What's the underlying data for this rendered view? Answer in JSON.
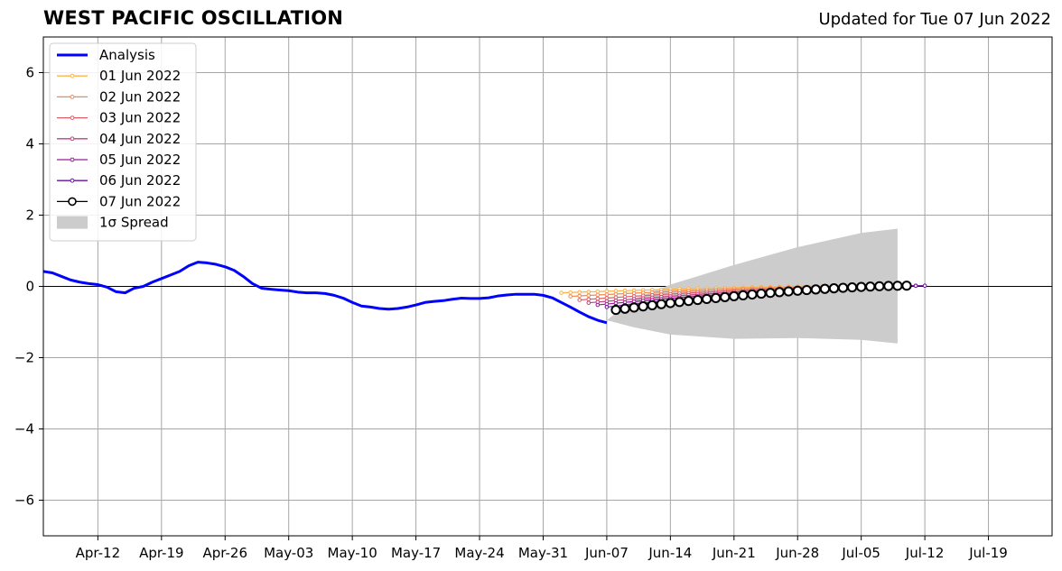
{
  "title": "WEST PACIFIC OSCILLATION",
  "subtitle": "Updated for Tue 07 Jun 2022",
  "chart_data": {
    "type": "line",
    "xlim": [
      "2022-04-06",
      "2022-07-26"
    ],
    "ylim": [
      -7,
      7
    ],
    "grid": true,
    "legend_position": "upper-left",
    "x_ticks": [
      "2022-04-12",
      "2022-04-19",
      "2022-04-26",
      "2022-05-03",
      "2022-05-10",
      "2022-05-17",
      "2022-05-24",
      "2022-05-31",
      "2022-06-07",
      "2022-06-14",
      "2022-06-21",
      "2022-06-28",
      "2022-07-05",
      "2022-07-12",
      "2022-07-19"
    ],
    "x_tick_labels": [
      "Apr-12",
      "Apr-19",
      "Apr-26",
      "May-03",
      "May-10",
      "May-17",
      "May-24",
      "May-31",
      "Jun-07",
      "Jun-14",
      "Jun-21",
      "Jun-28",
      "Jul-05",
      "Jul-12",
      "Jul-19"
    ],
    "y_ticks": [
      -6,
      -4,
      -2,
      0,
      2,
      4,
      6
    ],
    "y_tick_labels": [
      "−6",
      "−4",
      "−2",
      "0",
      "2",
      "4",
      "6"
    ],
    "analysis": {
      "name": "Analysis",
      "color": "#0000ff",
      "points": [
        [
          "2022-04-06",
          0.42
        ],
        [
          "2022-04-07",
          0.38
        ],
        [
          "2022-04-08",
          0.28
        ],
        [
          "2022-04-09",
          0.18
        ],
        [
          "2022-04-10",
          0.12
        ],
        [
          "2022-04-11",
          0.08
        ],
        [
          "2022-04-12",
          0.05
        ],
        [
          "2022-04-13",
          -0.02
        ],
        [
          "2022-04-14",
          -0.15
        ],
        [
          "2022-04-15",
          -0.18
        ],
        [
          "2022-04-16",
          -0.05
        ],
        [
          "2022-04-17",
          0.0
        ],
        [
          "2022-04-18",
          0.12
        ],
        [
          "2022-04-19",
          0.22
        ],
        [
          "2022-04-20",
          0.32
        ],
        [
          "2022-04-21",
          0.42
        ],
        [
          "2022-04-22",
          0.58
        ],
        [
          "2022-04-23",
          0.68
        ],
        [
          "2022-04-24",
          0.66
        ],
        [
          "2022-04-25",
          0.62
        ],
        [
          "2022-04-26",
          0.55
        ],
        [
          "2022-04-27",
          0.45
        ],
        [
          "2022-04-28",
          0.28
        ],
        [
          "2022-04-29",
          0.08
        ],
        [
          "2022-04-30",
          -0.05
        ],
        [
          "2022-05-01",
          -0.08
        ],
        [
          "2022-05-02",
          -0.1
        ],
        [
          "2022-05-03",
          -0.12
        ],
        [
          "2022-05-04",
          -0.16
        ],
        [
          "2022-05-05",
          -0.18
        ],
        [
          "2022-05-06",
          -0.18
        ],
        [
          "2022-05-07",
          -0.2
        ],
        [
          "2022-05-08",
          -0.25
        ],
        [
          "2022-05-09",
          -0.33
        ],
        [
          "2022-05-10",
          -0.45
        ],
        [
          "2022-05-11",
          -0.55
        ],
        [
          "2022-05-12",
          -0.58
        ],
        [
          "2022-05-13",
          -0.62
        ],
        [
          "2022-05-14",
          -0.64
        ],
        [
          "2022-05-15",
          -0.62
        ],
        [
          "2022-05-16",
          -0.58
        ],
        [
          "2022-05-17",
          -0.52
        ],
        [
          "2022-05-18",
          -0.45
        ],
        [
          "2022-05-19",
          -0.42
        ],
        [
          "2022-05-20",
          -0.4
        ],
        [
          "2022-05-21",
          -0.36
        ],
        [
          "2022-05-22",
          -0.33
        ],
        [
          "2022-05-23",
          -0.34
        ],
        [
          "2022-05-24",
          -0.34
        ],
        [
          "2022-05-25",
          -0.32
        ],
        [
          "2022-05-26",
          -0.27
        ],
        [
          "2022-05-27",
          -0.24
        ],
        [
          "2022-05-28",
          -0.22
        ],
        [
          "2022-05-29",
          -0.22
        ],
        [
          "2022-05-30",
          -0.22
        ],
        [
          "2022-05-31",
          -0.25
        ],
        [
          "2022-06-01",
          -0.32
        ],
        [
          "2022-06-02",
          -0.45
        ],
        [
          "2022-06-03",
          -0.58
        ],
        [
          "2022-06-04",
          -0.72
        ],
        [
          "2022-06-05",
          -0.85
        ],
        [
          "2022-06-06",
          -0.95
        ],
        [
          "2022-06-07",
          -1.02
        ]
      ]
    },
    "forecasts": [
      {
        "name": "01 Jun 2022",
        "color": "#fdb347",
        "start": "2022-06-02",
        "days": 35,
        "y0": -0.18,
        "y1": 0.02
      },
      {
        "name": "02 Jun 2022",
        "color": "#f3894e",
        "start": "2022-06-03",
        "days": 35,
        "y0": -0.28,
        "y1": 0.02
      },
      {
        "name": "03 Jun 2022",
        "color": "#dd5e66",
        "start": "2022-06-04",
        "days": 35,
        "y0": -0.38,
        "y1": 0.02
      },
      {
        "name": "04 Jun 2022",
        "color": "#c23e80",
        "start": "2022-06-05",
        "days": 35,
        "y0": -0.46,
        "y1": 0.02
      },
      {
        "name": "05 Jun 2022",
        "color": "#9c1a9a",
        "start": "2022-06-06",
        "days": 35,
        "y0": -0.52,
        "y1": 0.02
      },
      {
        "name": "06 Jun 2022",
        "color": "#6a0ea0",
        "start": "2022-06-07",
        "days": 35,
        "y0": -0.58,
        "y1": 0.02
      },
      {
        "name": "07 Jun 2022",
        "color": "#000000",
        "start": "2022-06-08",
        "days": 32,
        "y0": -0.66,
        "y1": 0.02
      }
    ],
    "spread": {
      "name": "1σ Spread",
      "color": "#cccccc",
      "upper": [
        [
          "2022-06-07",
          -0.95
        ],
        [
          "2022-06-10",
          -0.35
        ],
        [
          "2022-06-14",
          0.05
        ],
        [
          "2022-06-21",
          0.6
        ],
        [
          "2022-06-28",
          1.1
        ],
        [
          "2022-07-05",
          1.5
        ],
        [
          "2022-07-09",
          1.62
        ]
      ],
      "lower": [
        [
          "2022-06-07",
          -0.95
        ],
        [
          "2022-06-10",
          -1.15
        ],
        [
          "2022-06-14",
          -1.35
        ],
        [
          "2022-06-21",
          -1.47
        ],
        [
          "2022-06-28",
          -1.45
        ],
        [
          "2022-07-05",
          -1.5
        ],
        [
          "2022-07-09",
          -1.6
        ]
      ]
    },
    "legend": [
      "Analysis",
      "01 Jun 2022",
      "02 Jun 2022",
      "03 Jun 2022",
      "04 Jun 2022",
      "05 Jun 2022",
      "06 Jun 2022",
      "07 Jun 2022",
      "1σ Spread"
    ]
  }
}
